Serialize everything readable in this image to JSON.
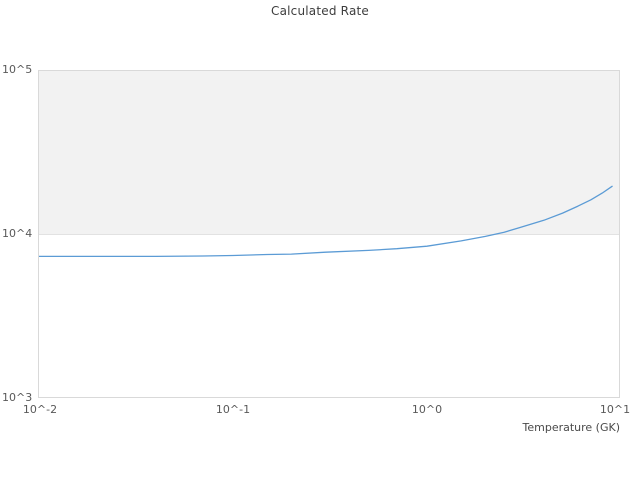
{
  "title": "Calculated Rate",
  "colors": {
    "line": "#5b9bd5",
    "band_fill": "#f2f2f2",
    "grid": "#e2e2e2",
    "plot_border": "#d9d9d9",
    "tick_text": "#595959",
    "title_text": "#3d3d3d"
  },
  "x_axis": {
    "label": "Temperature (GK)",
    "ticks": [
      "10^-2",
      "10^-1",
      "10^0",
      "10^1"
    ]
  },
  "y_axis": {
    "ticks": [
      "10^5",
      "10^4",
      "10^3"
    ]
  },
  "chart_data": {
    "type": "line",
    "title": "Calculated Rate",
    "xlabel": "Temperature (GK)",
    "ylabel": "",
    "x_scale": "log",
    "y_scale": "log",
    "xlim": [
      0.01,
      10
    ],
    "ylim": [
      1000,
      100000
    ],
    "grid": "horizontal-decade-band",
    "shaded_band_y": [
      10000,
      100000
    ],
    "legend": "none",
    "series": [
      {
        "name": "calculated-rate",
        "x": [
          0.01,
          0.02,
          0.04,
          0.07,
          0.1,
          0.15,
          0.2,
          0.3,
          0.5,
          0.7,
          1.0,
          1.5,
          2.0,
          2.5,
          3.0,
          4.0,
          5.0,
          6.0,
          7.0,
          8.0,
          9.0
        ],
        "y": [
          7400,
          7400,
          7400,
          7450,
          7500,
          7600,
          7650,
          7850,
          8050,
          8250,
          8550,
          9200,
          9800,
          10400,
          11100,
          12300,
          13600,
          15000,
          16400,
          18000,
          19800
        ]
      }
    ]
  }
}
